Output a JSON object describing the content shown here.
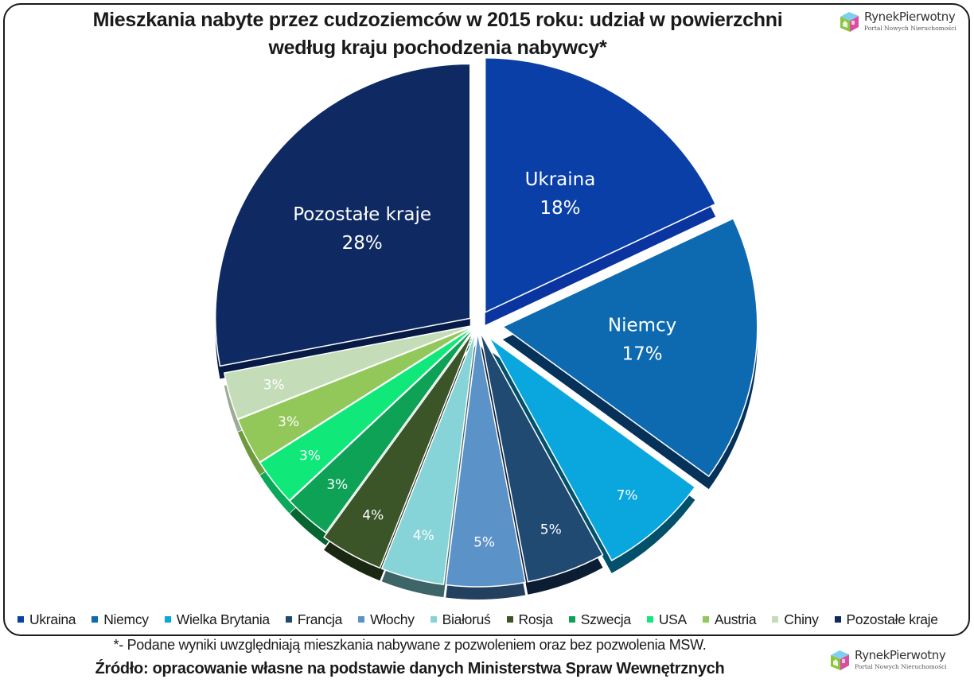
{
  "title": {
    "line1": "Mieszkania nabyte przez cudzoziemców w 2015 roku: udział w powierzchni",
    "line2": "według kraju pochodzenia nabywcy*"
  },
  "logo": {
    "name": "RynekPierwotny",
    "tagline": "Portal Nowych Nieruchomości"
  },
  "footnote": "*- Podane wyniki uwzględniają mieszkania nabywane z pozwoleniem oraz bez pozwolenia MSW.",
  "source": "Źródło: opracowanie własne na podstawie danych Ministerstwa Spraw Wewnętrznych",
  "chart_data": {
    "type": "pie",
    "title": "Mieszkania nabyte przez cudzoziemców w 2015 roku: udział w powierzchni według kraju pochodzenia nabywcy*",
    "unit": "%",
    "start_angle_deg": 0,
    "direction": "clockwise",
    "legend_position": "bottom",
    "categories": [
      "Ukraina",
      "Niemcy",
      "Wielka Brytania",
      "Francja",
      "Włochy",
      "Białoruś",
      "Rosja",
      "Szwecja",
      "USA",
      "Austria",
      "Chiny",
      "Pozostałe kraje"
    ],
    "values": [
      18,
      17,
      7,
      5,
      5,
      4,
      4,
      3,
      3,
      3,
      3,
      28
    ],
    "labels": [
      "Ukraina\n18%",
      "Niemcy\n17%",
      "7%",
      "5%",
      "5%",
      "4%",
      "4%",
      "3%",
      "3%",
      "3%",
      "3%",
      "Pozostałe kraje\n28%"
    ],
    "colors": [
      "#0a3fa8",
      "#0e6ab0",
      "#0aa6de",
      "#204a72",
      "#5b92c8",
      "#86d4d8",
      "#3b5428",
      "#0ea257",
      "#10e87a",
      "#92c85a",
      "#c4dcb8",
      "#0f2a62"
    ],
    "depth_colors": [
      "#0a34a0",
      "#06325a",
      "#03506a",
      "#0c1c33",
      "#23405e",
      "#3d6466",
      "#1a2813",
      "#066530",
      "#0aa85a",
      "#6c9a3c",
      "#9bab95",
      "#061a45"
    ]
  },
  "legend": [
    {
      "label": "Ukraina",
      "color": "#0a3fa8"
    },
    {
      "label": "Niemcy",
      "color": "#0e6ab0"
    },
    {
      "label": "Wielka Brytania",
      "color": "#0aa6de"
    },
    {
      "label": "Francja",
      "color": "#204a72"
    },
    {
      "label": "Włochy",
      "color": "#5b92c8"
    },
    {
      "label": "Białoruś",
      "color": "#86d4d8"
    },
    {
      "label": "Rosja",
      "color": "#3b5428"
    },
    {
      "label": "Szwecja",
      "color": "#0ea257"
    },
    {
      "label": "USA",
      "color": "#10e87a"
    },
    {
      "label": "Austria",
      "color": "#92c85a"
    },
    {
      "label": "Chiny",
      "color": "#c4dcb8"
    },
    {
      "label": "Pozostałe kraje",
      "color": "#0f2a62"
    }
  ]
}
